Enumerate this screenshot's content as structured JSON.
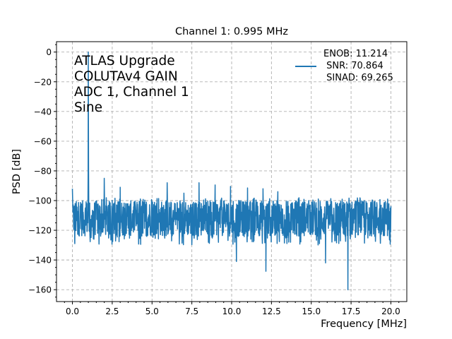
{
  "chart_data": {
    "type": "line",
    "title": "Channel 1: 0.995 MHz",
    "xlabel": "Frequency [MHz]",
    "ylabel": "PSD [dB]",
    "xlim": [
      -1,
      21
    ],
    "ylim": [
      -168,
      7
    ],
    "xticks": [
      0,
      2.5,
      5,
      7.5,
      10,
      12.5,
      15,
      17.5,
      20
    ],
    "xtick_labels": [
      "0.0",
      "2.5",
      "5.0",
      "7.5",
      "10.0",
      "12.5",
      "15.0",
      "17.5",
      "20.0"
    ],
    "yticks": [
      0,
      -20,
      -40,
      -60,
      -80,
      -100,
      -120,
      -140,
      -160
    ],
    "ytick_labels": [
      "0",
      "−20",
      "−40",
      "−60",
      "−80",
      "−100",
      "−120",
      "−140",
      "−160"
    ],
    "grid": true,
    "color": "#1f77b4",
    "annotation": [
      "ATLAS Upgrade",
      "COLUTAv4 GAIN",
      "ADC 1, Channel 1",
      "Sine"
    ],
    "legend": {
      "placement": "top-right",
      "entries": [
        "ENOB: 11.214",
        " SNR: 70.864",
        " SINAD: 69.265"
      ]
    },
    "series": [
      {
        "name": "PSD",
        "noise_floor_db": -112,
        "noise_band_db": [
          -124,
          -100
        ],
        "x_range": [
          0,
          20
        ],
        "fundamental": {
          "x": 0.995,
          "y": 0
        },
        "spurs": [
          {
            "x": 0.0,
            "y": -92
          },
          {
            "x": 2.0,
            "y": -85
          },
          {
            "x": 3.0,
            "y": -91
          },
          {
            "x": 5.95,
            "y": -88
          },
          {
            "x": 7.0,
            "y": -95
          },
          {
            "x": 7.95,
            "y": -88
          },
          {
            "x": 8.96,
            "y": -89.5
          },
          {
            "x": 9.93,
            "y": -90.5
          },
          {
            "x": 11.0,
            "y": -91.5
          },
          {
            "x": 11.97,
            "y": -92
          },
          {
            "x": 12.9,
            "y": -94
          },
          {
            "x": 19.8,
            "y": -99
          }
        ],
        "dips": [
          {
            "x": 0.15,
            "y": -129
          },
          {
            "x": 1.35,
            "y": -126
          },
          {
            "x": 10.3,
            "y": -141
          },
          {
            "x": 12.15,
            "y": -147.6
          },
          {
            "x": 15.9,
            "y": -142
          },
          {
            "x": 17.3,
            "y": -160
          }
        ]
      }
    ]
  }
}
